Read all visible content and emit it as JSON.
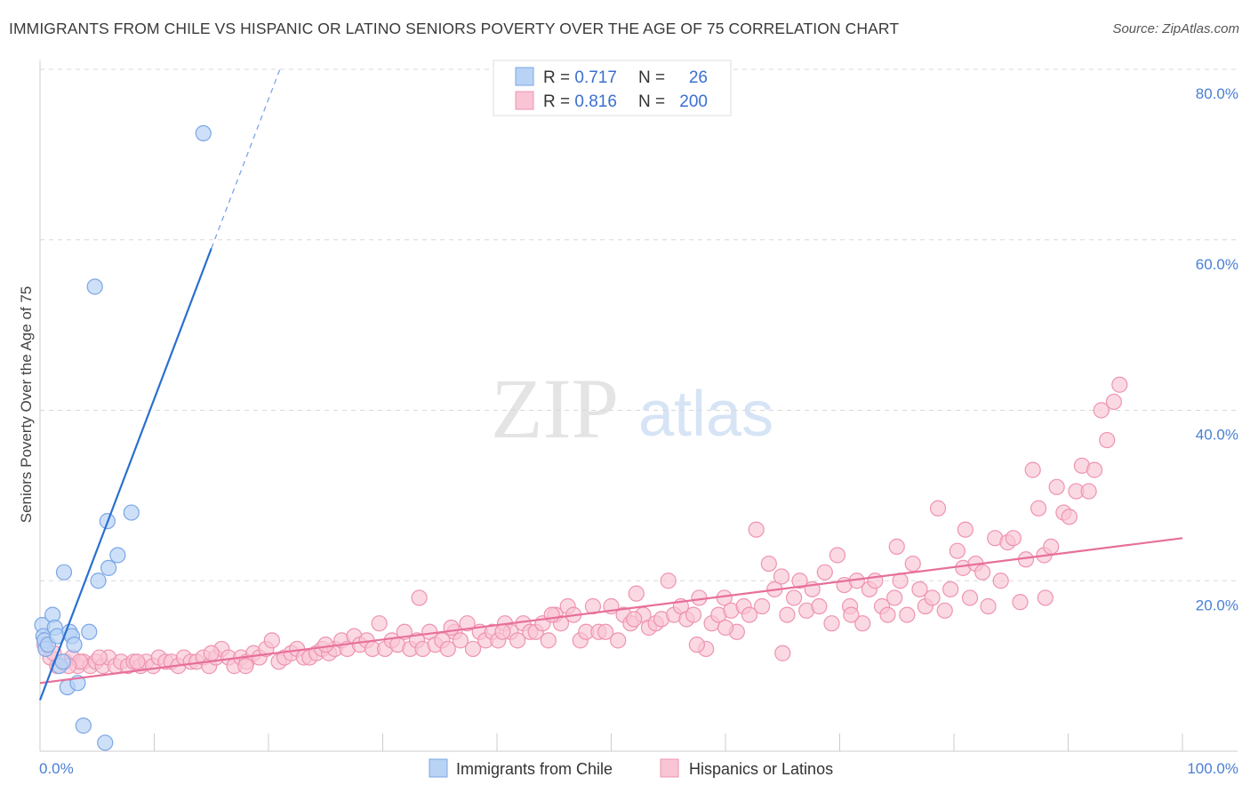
{
  "title": "IMMIGRANTS FROM CHILE VS HISPANIC OR LATINO SENIORS POVERTY OVER THE AGE OF 75 CORRELATION CHART",
  "source": "Source: ZipAtlas.com",
  "watermark": {
    "zip": "ZIP",
    "atlas": "atlas"
  },
  "colors": {
    "blue_fill": "#b9d3f5",
    "blue_stroke": "#7aa6e6",
    "blue_line": "#2a6fd0",
    "pink_fill": "#f9c4d4",
    "pink_stroke": "#ee93b0",
    "pink_line": "#e76f9a",
    "tick": "#4a7fd4",
    "grid": "#d8d8d8"
  },
  "legend": {
    "rows": [
      {
        "r_label": "R = ",
        "r_value": "0.717",
        "n_label": "N = ",
        "n_value": "26"
      },
      {
        "r_label": "R = ",
        "r_value": "0.816",
        "n_label": "N = ",
        "n_value": "200"
      }
    ]
  },
  "chart_data": {
    "type": "scatter",
    "ylabel": "Seniors Poverty Over the Age of 75",
    "xlim": [
      0,
      100
    ],
    "ylim": [
      0,
      80
    ],
    "x_tick_labels": [
      "0.0%",
      "100.0%"
    ],
    "y_ticks": [
      20,
      40,
      60,
      80
    ],
    "y_tick_labels": [
      "20.0%",
      "40.0%",
      "60.0%",
      "80.0%"
    ],
    "grid": true,
    "legend_position": "top-center",
    "series": [
      {
        "name": "Immigrants from Chile",
        "color": "#b9d3f5",
        "points": [
          [
            0.2,
            14.8
          ],
          [
            0.3,
            13.5
          ],
          [
            0.4,
            13.0
          ],
          [
            0.5,
            12.0
          ],
          [
            0.7,
            12.5
          ],
          [
            1.1,
            16.0
          ],
          [
            1.3,
            14.5
          ],
          [
            1.5,
            13.5
          ],
          [
            1.7,
            10.0
          ],
          [
            2.0,
            10.5
          ],
          [
            2.1,
            21.0
          ],
          [
            2.4,
            7.5
          ],
          [
            2.6,
            14.0
          ],
          [
            2.8,
            13.5
          ],
          [
            3.0,
            12.5
          ],
          [
            3.3,
            8.0
          ],
          [
            3.8,
            3.0
          ],
          [
            4.3,
            14.0
          ],
          [
            4.8,
            54.5
          ],
          [
            5.1,
            20.0
          ],
          [
            5.7,
            1.0
          ],
          [
            5.9,
            27.0
          ],
          [
            6.0,
            21.5
          ],
          [
            6.8,
            23.0
          ],
          [
            8.0,
            28.0
          ],
          [
            14.3,
            72.5
          ]
        ],
        "trend": {
          "x0": 0,
          "y0": 6.0,
          "x1": 15,
          "y1": 59.0,
          "dash_to_x": 21,
          "dash_to_y": 80.0
        }
      },
      {
        "name": "Hispanics or Latinos",
        "color": "#f9c4d4",
        "points": [
          [
            0.4,
            12.5
          ],
          [
            0.9,
            11.0
          ],
          [
            1.5,
            10.0
          ],
          [
            2.2,
            10.5
          ],
          [
            2.8,
            11.0
          ],
          [
            3.3,
            10.0
          ],
          [
            3.8,
            10.5
          ],
          [
            4.4,
            10.0
          ],
          [
            4.9,
            10.5
          ],
          [
            5.5,
            10.0
          ],
          [
            6.0,
            11.0
          ],
          [
            6.6,
            10.0
          ],
          [
            7.1,
            10.5
          ],
          [
            7.7,
            10.0
          ],
          [
            8.2,
            10.5
          ],
          [
            8.8,
            10.0
          ],
          [
            9.3,
            10.5
          ],
          [
            9.9,
            10.0
          ],
          [
            10.4,
            11.0
          ],
          [
            11.0,
            10.5
          ],
          [
            11.5,
            10.5
          ],
          [
            12.1,
            10.0
          ],
          [
            12.6,
            11.0
          ],
          [
            13.2,
            10.5
          ],
          [
            13.7,
            10.5
          ],
          [
            14.3,
            11.0
          ],
          [
            14.8,
            10.0
          ],
          [
            15.4,
            11.0
          ],
          [
            15.9,
            12.0
          ],
          [
            16.5,
            11.0
          ],
          [
            17.0,
            10.0
          ],
          [
            17.6,
            11.0
          ],
          [
            18.1,
            10.5
          ],
          [
            18.7,
            11.5
          ],
          [
            19.2,
            11.0
          ],
          [
            19.8,
            12.0
          ],
          [
            20.3,
            13.0
          ],
          [
            20.9,
            10.5
          ],
          [
            21.4,
            11.0
          ],
          [
            22.0,
            11.5
          ],
          [
            22.5,
            12.0
          ],
          [
            23.1,
            11.0
          ],
          [
            23.6,
            11.0
          ],
          [
            24.2,
            11.5
          ],
          [
            24.7,
            12.0
          ],
          [
            25.3,
            11.5
          ],
          [
            25.8,
            12.0
          ],
          [
            26.4,
            13.0
          ],
          [
            26.9,
            12.0
          ],
          [
            27.5,
            13.5
          ],
          [
            28.0,
            12.5
          ],
          [
            28.6,
            13.0
          ],
          [
            29.1,
            12.0
          ],
          [
            29.7,
            15.0
          ],
          [
            30.2,
            12.0
          ],
          [
            30.8,
            13.0
          ],
          [
            31.3,
            12.5
          ],
          [
            31.9,
            14.0
          ],
          [
            32.4,
            12.0
          ],
          [
            33.0,
            13.0
          ],
          [
            33.5,
            12.0
          ],
          [
            34.1,
            14.0
          ],
          [
            34.6,
            12.5
          ],
          [
            35.2,
            13.0
          ],
          [
            35.7,
            12.0
          ],
          [
            36.3,
            14.0
          ],
          [
            36.8,
            13.0
          ],
          [
            37.4,
            15.0
          ],
          [
            37.9,
            12.0
          ],
          [
            38.5,
            14.0
          ],
          [
            39.0,
            13.0
          ],
          [
            39.6,
            14.0
          ],
          [
            40.1,
            13.0
          ],
          [
            40.7,
            15.0
          ],
          [
            41.2,
            14.0
          ],
          [
            41.8,
            13.0
          ],
          [
            42.3,
            15.0
          ],
          [
            42.9,
            14.0
          ],
          [
            43.4,
            14.0
          ],
          [
            44.0,
            15.0
          ],
          [
            44.5,
            13.0
          ],
          [
            45.1,
            16.0
          ],
          [
            45.6,
            15.0
          ],
          [
            46.2,
            17.0
          ],
          [
            46.7,
            16.0
          ],
          [
            47.3,
            13.0
          ],
          [
            47.8,
            14.0
          ],
          [
            48.4,
            17.0
          ],
          [
            48.9,
            14.0
          ],
          [
            49.5,
            14.0
          ],
          [
            50.0,
            17.0
          ],
          [
            50.6,
            13.0
          ],
          [
            51.1,
            16.0
          ],
          [
            51.7,
            15.0
          ],
          [
            52.2,
            18.5
          ],
          [
            52.8,
            16.0
          ],
          [
            53.3,
            14.5
          ],
          [
            53.9,
            15.0
          ],
          [
            54.4,
            15.5
          ],
          [
            55.0,
            20.0
          ],
          [
            55.5,
            16.0
          ],
          [
            56.1,
            17.0
          ],
          [
            56.6,
            15.5
          ],
          [
            57.2,
            16.0
          ],
          [
            57.7,
            18.0
          ],
          [
            58.3,
            12.0
          ],
          [
            58.8,
            15.0
          ],
          [
            59.4,
            16.0
          ],
          [
            59.9,
            18.0
          ],
          [
            60.5,
            16.5
          ],
          [
            61.0,
            14.0
          ],
          [
            61.6,
            17.0
          ],
          [
            62.1,
            16.0
          ],
          [
            62.7,
            26.0
          ],
          [
            63.2,
            17.0
          ],
          [
            63.8,
            22.0
          ],
          [
            64.3,
            19.0
          ],
          [
            64.9,
            20.5
          ],
          [
            65.4,
            16.0
          ],
          [
            66.0,
            18.0
          ],
          [
            66.5,
            20.0
          ],
          [
            67.1,
            16.5
          ],
          [
            67.6,
            19.0
          ],
          [
            68.2,
            17.0
          ],
          [
            68.7,
            21.0
          ],
          [
            69.3,
            15.0
          ],
          [
            69.8,
            23.0
          ],
          [
            70.4,
            19.5
          ],
          [
            70.9,
            17.0
          ],
          [
            71.5,
            20.0
          ],
          [
            72.0,
            15.0
          ],
          [
            72.6,
            19.0
          ],
          [
            73.1,
            20.0
          ],
          [
            73.7,
            17.0
          ],
          [
            74.2,
            16.0
          ],
          [
            74.8,
            18.0
          ],
          [
            75.3,
            20.0
          ],
          [
            75.9,
            16.0
          ],
          [
            76.4,
            22.0
          ],
          [
            77.0,
            19.0
          ],
          [
            77.5,
            17.0
          ],
          [
            78.1,
            18.0
          ],
          [
            78.6,
            28.5
          ],
          [
            79.2,
            16.5
          ],
          [
            79.7,
            19.0
          ],
          [
            80.3,
            23.5
          ],
          [
            80.8,
            21.5
          ],
          [
            81.4,
            18.0
          ],
          [
            81.9,
            22.0
          ],
          [
            82.5,
            21.0
          ],
          [
            83.0,
            17.0
          ],
          [
            83.6,
            25.0
          ],
          [
            84.1,
            20.0
          ],
          [
            84.7,
            24.5
          ],
          [
            85.2,
            25.0
          ],
          [
            85.8,
            17.5
          ],
          [
            86.3,
            22.5
          ],
          [
            86.9,
            33.0
          ],
          [
            87.4,
            28.5
          ],
          [
            87.9,
            23.0
          ],
          [
            88.5,
            24.0
          ],
          [
            89.0,
            31.0
          ],
          [
            89.6,
            28.0
          ],
          [
            90.1,
            27.5
          ],
          [
            90.7,
            30.5
          ],
          [
            91.2,
            33.5
          ],
          [
            91.8,
            30.5
          ],
          [
            92.3,
            33.0
          ],
          [
            92.9,
            40.0
          ],
          [
            93.4,
            36.5
          ],
          [
            94.0,
            41.0
          ],
          [
            94.5,
            43.0
          ],
          [
            33.2,
            18.0
          ],
          [
            65.0,
            11.5
          ],
          [
            71.0,
            16.0
          ],
          [
            60.0,
            14.5
          ],
          [
            52.0,
            15.5
          ],
          [
            40.5,
            14.0
          ],
          [
            25.0,
            12.5
          ],
          [
            15.0,
            11.5
          ],
          [
            8.5,
            10.5
          ],
          [
            5.2,
            11.0
          ],
          [
            3.5,
            10.5
          ],
          [
            2.5,
            10.0
          ],
          [
            1.2,
            11.5
          ],
          [
            18.0,
            10.0
          ],
          [
            36.0,
            14.5
          ],
          [
            44.8,
            16.0
          ],
          [
            57.5,
            12.5
          ],
          [
            75.0,
            24.0
          ],
          [
            81.0,
            26.0
          ],
          [
            88.0,
            18.0
          ]
        ],
        "trend": {
          "x0": 0,
          "y0": 8.0,
          "x1": 100,
          "y1": 25.0
        }
      }
    ]
  },
  "bottom_legend": [
    {
      "label": "Immigrants from Chile"
    },
    {
      "label": "Hispanics or Latinos"
    }
  ]
}
